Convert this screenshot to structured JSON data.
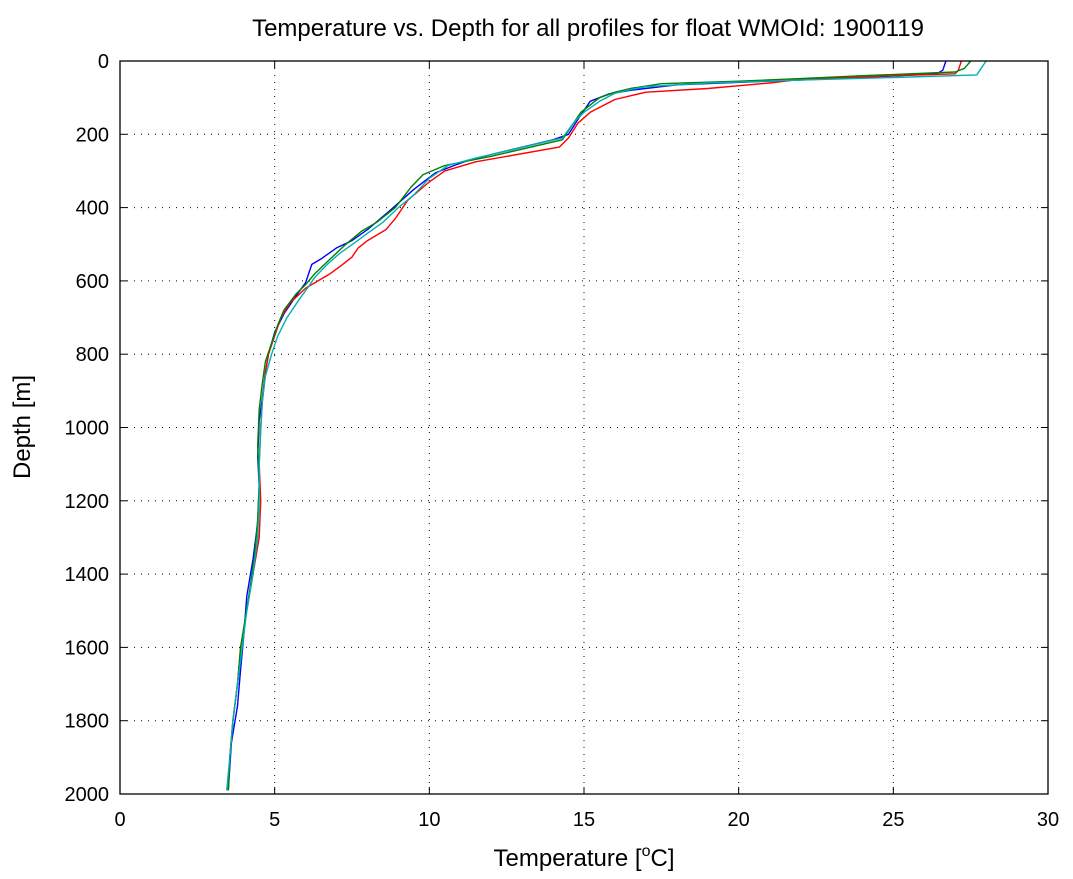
{
  "chart_data": {
    "type": "line",
    "title": "Temperature vs. Depth for all profiles for float WMOId: 1900119",
    "xlabel_main": "Temperature [",
    "xlabel_sup": "o",
    "xlabel_end": "C]",
    "ylabel": "Depth [m]",
    "xlim": [
      0,
      30
    ],
    "ylim": [
      2000,
      0
    ],
    "y_reversed": true,
    "grid": true,
    "xticks": [
      "0",
      "5",
      "10",
      "15",
      "20",
      "25",
      "30"
    ],
    "yticks": [
      "0",
      "200",
      "400",
      "600",
      "800",
      "1000",
      "1200",
      "1400",
      "1600",
      "1800",
      "2000"
    ],
    "series": [
      {
        "color": "#0000ff",
        "points": [
          [
            26.7,
            0
          ],
          [
            26.6,
            25
          ],
          [
            26.4,
            35
          ],
          [
            24,
            45
          ],
          [
            21,
            55
          ],
          [
            18,
            65
          ],
          [
            16.5,
            80
          ],
          [
            15.8,
            90
          ],
          [
            15.2,
            110
          ],
          [
            14.8,
            160
          ],
          [
            14.5,
            200
          ],
          [
            14,
            215
          ],
          [
            12,
            255
          ],
          [
            11.3,
            270
          ],
          [
            10.8,
            285
          ],
          [
            10.2,
            305
          ],
          [
            9.5,
            350
          ],
          [
            8.7,
            410
          ],
          [
            8,
            460
          ],
          [
            7.5,
            490
          ],
          [
            7,
            510
          ],
          [
            6.5,
            540
          ],
          [
            6.2,
            555
          ],
          [
            6,
            605
          ],
          [
            5.7,
            640
          ],
          [
            5.3,
            690
          ],
          [
            5,
            740
          ],
          [
            4.8,
            800
          ],
          [
            4.7,
            850
          ],
          [
            4.6,
            920
          ],
          [
            4.5,
            980
          ],
          [
            4.45,
            1080
          ],
          [
            4.5,
            1160
          ],
          [
            4.45,
            1260
          ],
          [
            4.3,
            1360
          ],
          [
            4.1,
            1460
          ],
          [
            4,
            1570
          ],
          [
            3.9,
            1660
          ],
          [
            3.8,
            1760
          ],
          [
            3.6,
            1860
          ],
          [
            3.5,
            1990
          ]
        ]
      },
      {
        "color": "#ff0000",
        "points": [
          [
            27.2,
            0
          ],
          [
            27.1,
            25
          ],
          [
            27,
            35
          ],
          [
            25,
            40
          ],
          [
            22,
            50
          ],
          [
            21,
            60
          ],
          [
            19,
            75
          ],
          [
            17,
            85
          ],
          [
            16.5,
            95
          ],
          [
            16,
            105
          ],
          [
            15.2,
            140
          ],
          [
            14.8,
            170
          ],
          [
            14.5,
            210
          ],
          [
            14.2,
            235
          ],
          [
            11.5,
            275
          ],
          [
            10.5,
            300
          ],
          [
            10,
            330
          ],
          [
            9.3,
            380
          ],
          [
            8.9,
            430
          ],
          [
            8.6,
            460
          ],
          [
            8,
            490
          ],
          [
            7.7,
            510
          ],
          [
            7.5,
            535
          ],
          [
            7.2,
            555
          ],
          [
            6.8,
            580
          ],
          [
            6.4,
            600
          ],
          [
            6,
            620
          ],
          [
            5.5,
            660
          ],
          [
            5.2,
            700
          ],
          [
            5,
            750
          ],
          [
            4.8,
            800
          ],
          [
            4.7,
            850
          ],
          [
            4.6,
            930
          ],
          [
            4.55,
            1000
          ],
          [
            4.5,
            1100
          ],
          [
            4.55,
            1200
          ],
          [
            4.5,
            1300
          ],
          [
            4.3,
            1400
          ],
          [
            4.1,
            1500
          ],
          [
            3.9,
            1600
          ],
          [
            3.8,
            1700
          ],
          [
            3.65,
            1800
          ],
          [
            3.55,
            1900
          ],
          [
            3.5,
            1990
          ]
        ]
      },
      {
        "color": "#008000",
        "points": [
          [
            27.5,
            0
          ],
          [
            27.3,
            20
          ],
          [
            27,
            30
          ],
          [
            24,
            40
          ],
          [
            22,
            48
          ],
          [
            20,
            55
          ],
          [
            17.5,
            62
          ],
          [
            16.5,
            75
          ],
          [
            16,
            85
          ],
          [
            15.5,
            100
          ],
          [
            14.9,
            140
          ],
          [
            14.5,
            190
          ],
          [
            14.3,
            215
          ],
          [
            12,
            260
          ],
          [
            10.5,
            285
          ],
          [
            9.8,
            310
          ],
          [
            9.4,
            345
          ],
          [
            8.9,
            400
          ],
          [
            8.3,
            440
          ],
          [
            7.8,
            465
          ],
          [
            7.3,
            500
          ],
          [
            6.8,
            540
          ],
          [
            6.3,
            580
          ],
          [
            6,
            610
          ],
          [
            5.7,
            635
          ],
          [
            5.3,
            680
          ],
          [
            5.1,
            720
          ],
          [
            4.9,
            770
          ],
          [
            4.7,
            820
          ],
          [
            4.6,
            880
          ],
          [
            4.5,
            950
          ],
          [
            4.45,
            1050
          ],
          [
            4.5,
            1150
          ],
          [
            4.45,
            1250
          ],
          [
            4.35,
            1350
          ],
          [
            4.2,
            1440
          ],
          [
            4.05,
            1520
          ],
          [
            3.9,
            1600
          ],
          [
            3.8,
            1700
          ],
          [
            3.65,
            1800
          ],
          [
            3.55,
            1900
          ],
          [
            3.5,
            1990
          ]
        ]
      },
      {
        "color": "#00b0b0",
        "points": [
          [
            28,
            0
          ],
          [
            27.8,
            25
          ],
          [
            27.7,
            38
          ],
          [
            25,
            45
          ],
          [
            22,
            52
          ],
          [
            19,
            60
          ],
          [
            17,
            70
          ],
          [
            16.5,
            78
          ],
          [
            16,
            88
          ],
          [
            15.5,
            110
          ],
          [
            15,
            140
          ],
          [
            14.7,
            165
          ],
          [
            14.3,
            210
          ],
          [
            12,
            255
          ],
          [
            11.5,
            265
          ],
          [
            10.6,
            285
          ],
          [
            10,
            320
          ],
          [
            9.5,
            365
          ],
          [
            9,
            400
          ],
          [
            8.5,
            440
          ],
          [
            8,
            470
          ],
          [
            7.6,
            495
          ],
          [
            7.1,
            525
          ],
          [
            6.7,
            555
          ],
          [
            6.3,
            590
          ],
          [
            6.1,
            615
          ],
          [
            5.8,
            650
          ],
          [
            5.4,
            700
          ],
          [
            5.1,
            750
          ],
          [
            4.9,
            800
          ],
          [
            4.7,
            860
          ],
          [
            4.6,
            930
          ],
          [
            4.55,
            1010
          ],
          [
            4.5,
            1100
          ],
          [
            4.5,
            1200
          ],
          [
            4.45,
            1300
          ],
          [
            4.3,
            1400
          ],
          [
            4.1,
            1500
          ],
          [
            3.95,
            1600
          ],
          [
            3.8,
            1700
          ],
          [
            3.65,
            1800
          ],
          [
            3.55,
            1900
          ],
          [
            3.45,
            1990
          ]
        ]
      }
    ]
  }
}
